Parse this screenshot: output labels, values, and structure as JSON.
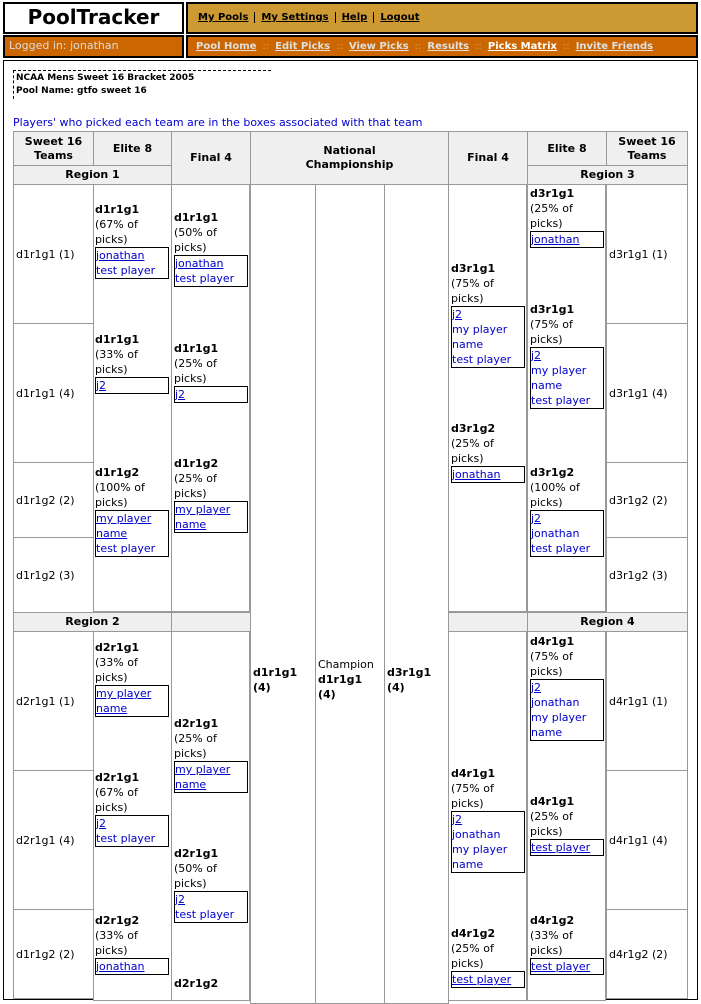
{
  "header": {
    "logo": "PoolTracker",
    "nav": [
      "My Pools",
      "My Settings",
      "Help",
      "Logout"
    ]
  },
  "login": "Logged in: jonathan",
  "subnav": {
    "items": [
      "Pool Home",
      "Edit Picks",
      "View Picks",
      "Results",
      "Picks Matrix",
      "Invite Friends"
    ],
    "active": "Picks Matrix"
  },
  "info": {
    "bracket": "NCAA Mens Sweet 16 Bracket 2005",
    "pool": "Pool Name: gtfo sweet 16"
  },
  "note": "Players' who picked each team are in the boxes associated with that team",
  "columns": {
    "sweet16": "Sweet 16 Teams",
    "elite8": "Elite 8",
    "final4": "Final 4",
    "championship": "National Championship"
  },
  "regions": [
    "Region 1",
    "Region 2",
    "Region 3",
    "Region 4"
  ],
  "left": {
    "sweet16": [
      "d1r1g1 (1)",
      "d1r1g1 (4)",
      "d1r1g2 (2)",
      "d1r1g2 (3)",
      "d2r1g1 (1)",
      "d2r1g1 (4)",
      "d1r1g2 (2)"
    ],
    "elite8": [
      {
        "team": "d1r1g1",
        "pct": "(67% of picks)",
        "players": [
          "jonathan",
          "test player"
        ]
      },
      {
        "team": "d1r1g1",
        "pct": "(33% of picks)",
        "players": [
          "j2"
        ]
      },
      {
        "team": "d1r1g2",
        "pct": "(100% of picks)",
        "players": [
          "my player name",
          "test player"
        ]
      },
      {
        "team": "d2r1g1",
        "pct": "(33% of picks)",
        "players": [
          "my player name"
        ]
      },
      {
        "team": "d2r1g1",
        "pct": "(67% of picks)",
        "players": [
          "j2",
          "test player"
        ]
      },
      {
        "team": "d2r1g2",
        "pct": "(33% of picks)",
        "players": [
          "jonathan"
        ]
      }
    ],
    "final4": [
      {
        "team": "d1r1g1",
        "pct": "(50% of picks)",
        "players": [
          "jonathan",
          "test player"
        ]
      },
      {
        "team": "d1r1g1",
        "pct": "(25% of picks)",
        "players": [
          "j2"
        ]
      },
      {
        "team": "d1r1g2",
        "pct": "(25% of picks)",
        "players": [
          "my player name"
        ]
      },
      {
        "team": "d2r1g1",
        "pct": "(25% of picks)",
        "players": [
          "my player name"
        ]
      },
      {
        "team": "d2r1g1",
        "pct": "(50% of picks)",
        "players": [
          "j2",
          "test player"
        ]
      },
      {
        "team": "d2r1g2",
        "pct": "",
        "players": []
      }
    ]
  },
  "right": {
    "sweet16": [
      "d3r1g1 (1)",
      "d3r1g1 (4)",
      "d3r1g2 (2)",
      "d3r1g2 (3)",
      "d4r1g1 (1)",
      "d4r1g1 (4)",
      "d4r1g2 (2)"
    ],
    "elite8": [
      {
        "team": "d3r1g1",
        "pct": "(25% of picks)",
        "players": [
          "jonathan"
        ]
      },
      {
        "team": "d3r1g1",
        "pct": "(75% of picks)",
        "players": [
          "j2",
          "my player name",
          "test player"
        ]
      },
      {
        "team": "d3r1g2",
        "pct": "(100% of picks)",
        "players": [
          "j2",
          "jonathan",
          "test player"
        ]
      },
      {
        "team": "d4r1g1",
        "pct": "(75% of picks)",
        "players": [
          "j2",
          "jonathan",
          "my player name"
        ]
      },
      {
        "team": "d4r1g1",
        "pct": "(25% of picks)",
        "players": [
          "test player"
        ]
      },
      {
        "team": "d4r1g2",
        "pct": "(33% of picks)",
        "players": [
          "test player"
        ]
      }
    ],
    "final4": [
      {
        "team": "d3r1g1",
        "pct": "(75% of picks)",
        "players": [
          "j2",
          "my player name",
          "test player"
        ]
      },
      {
        "team": "d3r1g2",
        "pct": "(25% of picks)",
        "players": [
          "jonathan"
        ]
      },
      {
        "team": "d4r1g1",
        "pct": "(75% of picks)",
        "players": [
          "j2",
          "jonathan",
          "my player name"
        ]
      },
      {
        "team": "d4r1g2",
        "pct": "(25% of picks)",
        "players": [
          "test player"
        ]
      }
    ]
  },
  "championship": {
    "left": "d1r1g1 (4)",
    "champion_label": "Champion",
    "champion": "d1r1g1 (4)",
    "right": "d3r1g1 (4)"
  }
}
